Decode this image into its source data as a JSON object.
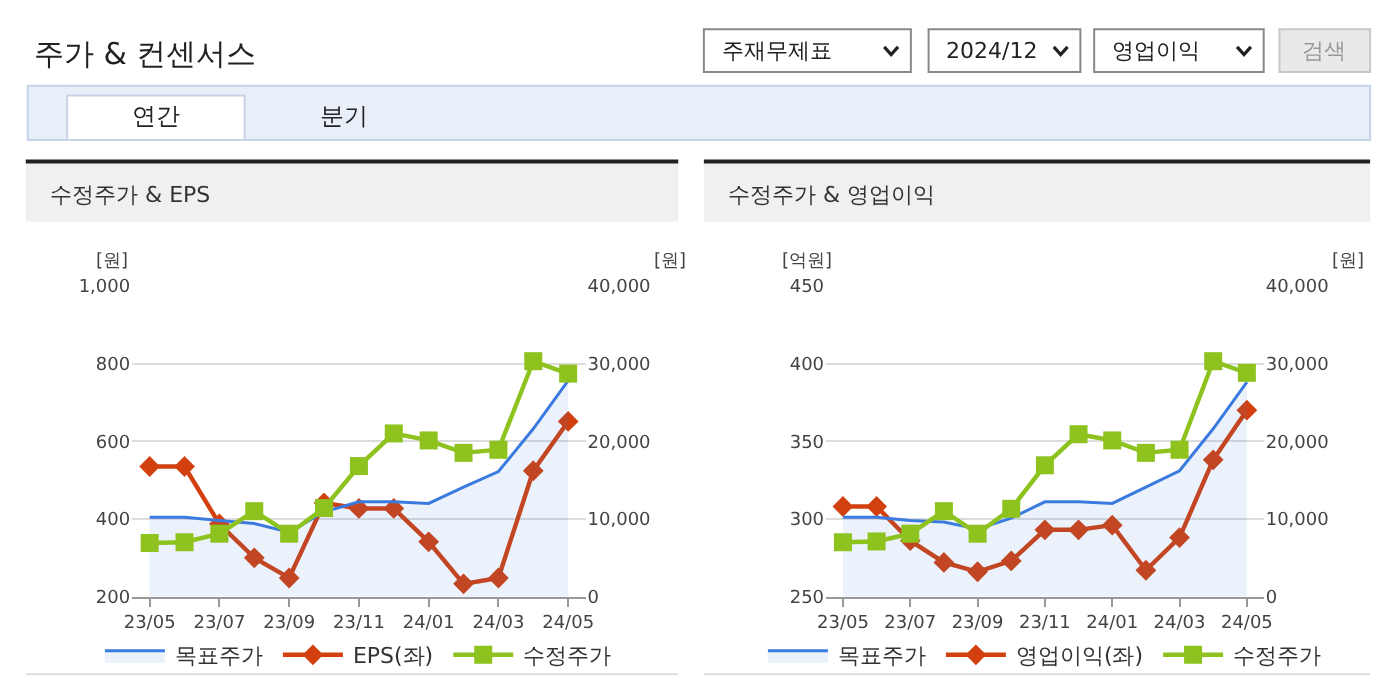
{
  "chart_data": [
    {
      "type": "other",
      "title": "주가 & 컨센서스",
      "annotations": [
        "주재무제표",
        "2024/12",
        "영업이익",
        "검색",
        "연간",
        "분기"
      ]
    },
    {
      "type": "line",
      "title": "수정주가 & EPS",
      "ylabel": "[원]",
      "y2label": "[원]",
      "categories": [
        "23/05",
        null,
        "23/07",
        null,
        "23/09",
        null,
        "23/11",
        null,
        "24/01",
        null,
        "24/03",
        null,
        "24/05"
      ],
      "ylim": [
        200,
        1000
      ],
      "yticks": [
        200,
        400,
        600,
        800,
        {
          "value": 1000,
          "label": "1,000"
        }
      ],
      "y2lim": [
        0,
        40000
      ],
      "y2ticks": [
        0,
        {
          "value": 10000,
          "label": "10,000"
        },
        {
          "value": 20000,
          "label": "20,000"
        },
        {
          "value": 30000,
          "label": "30,000"
        },
        {
          "value": 40000,
          "label": "40,000"
        }
      ],
      "grid": "y",
      "legend": "bottom",
      "series": [
        {
          "name": "목표주가",
          "type": "area",
          "axis": "y2",
          "color": "#3b7be0",
          "marker": "none",
          "values": [
            10200,
            10200,
            9800,
            9400,
            8300,
            10900,
            12200,
            12200,
            12000,
            14100,
            16100,
            21600,
            27800
          ]
        },
        {
          "name": "EPS(좌)",
          "type": "line",
          "color": "#d2400f",
          "marker": "diamond",
          "values": [
            535,
            535,
            387,
            300,
            248,
            441,
            427,
            427,
            341,
            233,
            248,
            524,
            651
          ]
        },
        {
          "name": "수정주가",
          "type": "line",
          "axis": "y2",
          "color": "#8dc21f",
          "marker": "square",
          "values": [
            6900,
            7000,
            8100,
            11000,
            8100,
            11400,
            16800,
            21000,
            20100,
            18500,
            18900,
            30300,
            28700
          ]
        }
      ]
    },
    {
      "type": "line",
      "title": "수정주가 & 영업이익",
      "ylabel": "[억원]",
      "y2label": "[원]",
      "categories": [
        "23/05",
        null,
        "23/07",
        null,
        "23/09",
        null,
        "23/11",
        null,
        "24/01",
        null,
        "24/03",
        null,
        "24/05"
      ],
      "ylim": [
        250,
        450
      ],
      "yticks": [
        250,
        300,
        350,
        400,
        450
      ],
      "y2lim": [
        0,
        40000
      ],
      "y2ticks": [
        0,
        {
          "value": 10000,
          "label": "10,000"
        },
        {
          "value": 20000,
          "label": "20,000"
        },
        {
          "value": 30000,
          "label": "30,000"
        },
        {
          "value": 40000,
          "label": "40,000"
        }
      ],
      "grid": "y",
      "legend": "bottom",
      "series": [
        {
          "name": "목표주가",
          "type": "area",
          "axis": "y2",
          "color": "#3b7be0",
          "marker": "none",
          "values": [
            10200,
            10200,
            9800,
            9600,
            8700,
            10100,
            12200,
            12200,
            12000,
            14100,
            16200,
            21600,
            27600
          ]
        },
        {
          "name": "영업이익(좌)",
          "type": "line",
          "color": "#d2400f",
          "marker": "diamond",
          "values": [
            308,
            308,
            286,
            272,
            266,
            273,
            293,
            293,
            296,
            267,
            288,
            338,
            370
          ]
        },
        {
          "name": "수정주가",
          "type": "line",
          "axis": "y2",
          "color": "#8dc21f",
          "marker": "square",
          "values": [
            7000,
            7100,
            8100,
            11000,
            8100,
            11300,
            16900,
            20900,
            20100,
            18500,
            18900,
            30300,
            28800
          ]
        }
      ]
    }
  ]
}
